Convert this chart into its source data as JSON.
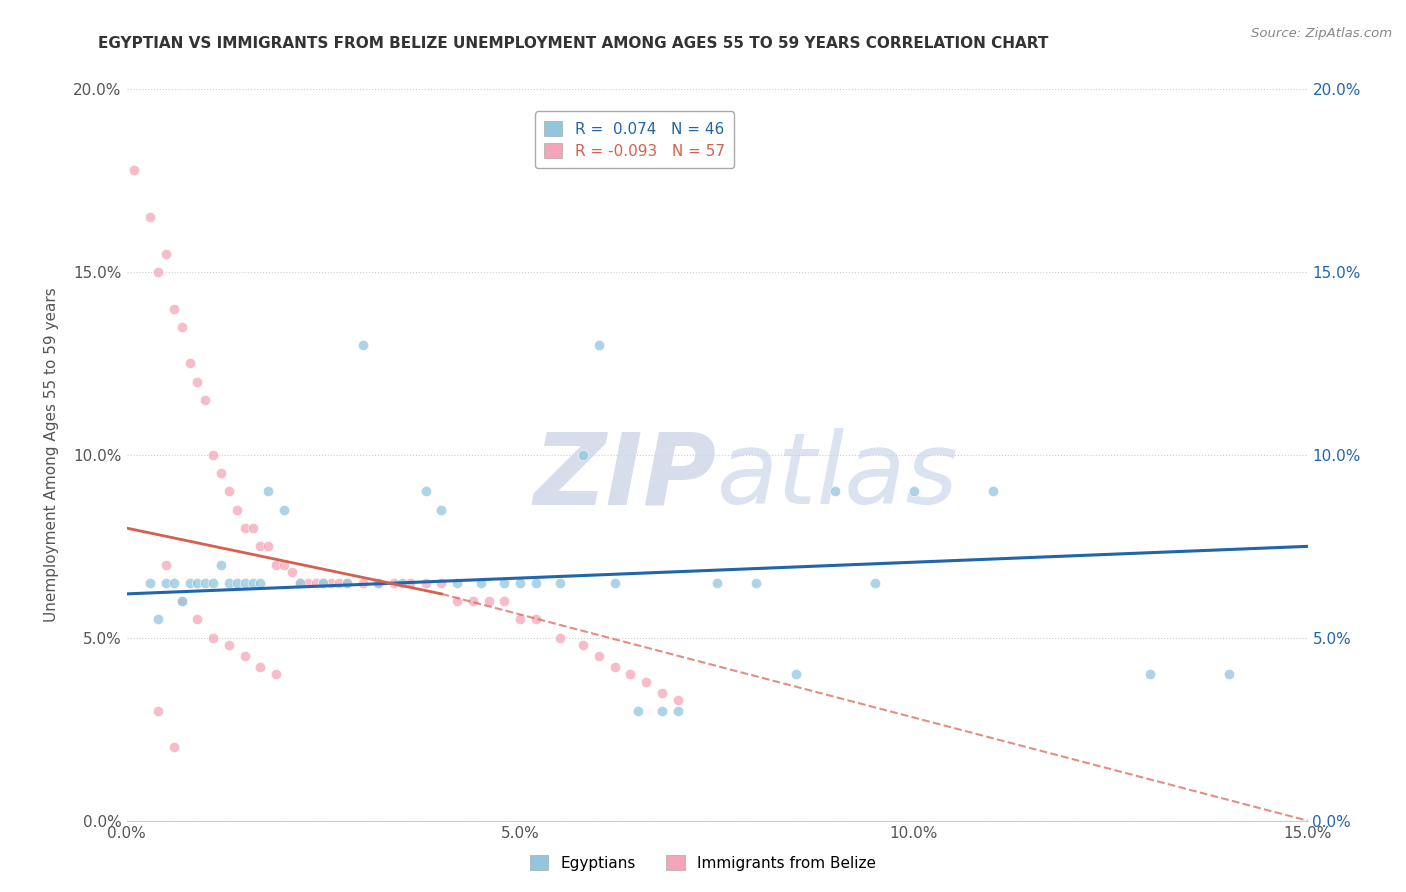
{
  "title": "EGYPTIAN VS IMMIGRANTS FROM BELIZE UNEMPLOYMENT AMONG AGES 55 TO 59 YEARS CORRELATION CHART",
  "source": "Source: ZipAtlas.com",
  "ylabel": "Unemployment Among Ages 55 to 59 years",
  "xlim": [
    0.0,
    0.15
  ],
  "ylim": [
    0.0,
    0.2
  ],
  "xticks": [
    0.0,
    0.05,
    0.1,
    0.15
  ],
  "yticks": [
    0.0,
    0.05,
    0.1,
    0.15,
    0.2
  ],
  "xtick_labels": [
    "0.0%",
    "5.0%",
    "10.0%",
    "15.0%"
  ],
  "ytick_labels_left": [
    "0.0%",
    "5.0%",
    "10.0%",
    "15.0%",
    "20.0%"
  ],
  "ytick_labels_right": [
    "0.0%",
    "5.0%",
    "10.0%",
    "15.0%",
    "20.0%"
  ],
  "color_blue": "#92c5de",
  "color_pink": "#f4a6b8",
  "color_blue_line": "#2166ac",
  "color_pink_line": "#d6604d",
  "R_blue": 0.074,
  "N_blue": 46,
  "R_pink": -0.093,
  "N_pink": 57,
  "watermark_zip": "ZIP",
  "watermark_atlas": "atlas",
  "legend_label_blue": "Egyptians",
  "legend_label_pink": "Immigrants from Belize",
  "blue_scatter": [
    [
      0.003,
      0.065
    ],
    [
      0.004,
      0.055
    ],
    [
      0.005,
      0.065
    ],
    [
      0.006,
      0.065
    ],
    [
      0.007,
      0.06
    ],
    [
      0.008,
      0.065
    ],
    [
      0.009,
      0.065
    ],
    [
      0.01,
      0.065
    ],
    [
      0.011,
      0.065
    ],
    [
      0.012,
      0.07
    ],
    [
      0.013,
      0.065
    ],
    [
      0.014,
      0.065
    ],
    [
      0.015,
      0.065
    ],
    [
      0.016,
      0.065
    ],
    [
      0.017,
      0.065
    ],
    [
      0.018,
      0.09
    ],
    [
      0.02,
      0.085
    ],
    [
      0.022,
      0.065
    ],
    [
      0.025,
      0.065
    ],
    [
      0.028,
      0.065
    ],
    [
      0.03,
      0.13
    ],
    [
      0.032,
      0.065
    ],
    [
      0.035,
      0.065
    ],
    [
      0.038,
      0.09
    ],
    [
      0.04,
      0.085
    ],
    [
      0.042,
      0.065
    ],
    [
      0.045,
      0.065
    ],
    [
      0.048,
      0.065
    ],
    [
      0.05,
      0.065
    ],
    [
      0.052,
      0.065
    ],
    [
      0.055,
      0.065
    ],
    [
      0.058,
      0.1
    ],
    [
      0.06,
      0.13
    ],
    [
      0.062,
      0.065
    ],
    [
      0.065,
      0.03
    ],
    [
      0.068,
      0.03
    ],
    [
      0.07,
      0.03
    ],
    [
      0.075,
      0.065
    ],
    [
      0.08,
      0.065
    ],
    [
      0.085,
      0.04
    ],
    [
      0.09,
      0.09
    ],
    [
      0.095,
      0.065
    ],
    [
      0.1,
      0.09
    ],
    [
      0.11,
      0.09
    ],
    [
      0.13,
      0.04
    ],
    [
      0.14,
      0.04
    ]
  ],
  "pink_scatter": [
    [
      0.001,
      0.178
    ],
    [
      0.003,
      0.165
    ],
    [
      0.004,
      0.15
    ],
    [
      0.005,
      0.155
    ],
    [
      0.006,
      0.14
    ],
    [
      0.007,
      0.135
    ],
    [
      0.008,
      0.125
    ],
    [
      0.009,
      0.12
    ],
    [
      0.01,
      0.115
    ],
    [
      0.011,
      0.1
    ],
    [
      0.012,
      0.095
    ],
    [
      0.013,
      0.09
    ],
    [
      0.014,
      0.085
    ],
    [
      0.015,
      0.08
    ],
    [
      0.016,
      0.08
    ],
    [
      0.017,
      0.075
    ],
    [
      0.018,
      0.075
    ],
    [
      0.019,
      0.07
    ],
    [
      0.02,
      0.07
    ],
    [
      0.021,
      0.068
    ],
    [
      0.022,
      0.065
    ],
    [
      0.023,
      0.065
    ],
    [
      0.024,
      0.065
    ],
    [
      0.025,
      0.065
    ],
    [
      0.026,
      0.065
    ],
    [
      0.027,
      0.065
    ],
    [
      0.028,
      0.065
    ],
    [
      0.03,
      0.065
    ],
    [
      0.032,
      0.065
    ],
    [
      0.034,
      0.065
    ],
    [
      0.036,
      0.065
    ],
    [
      0.038,
      0.065
    ],
    [
      0.04,
      0.065
    ],
    [
      0.042,
      0.06
    ],
    [
      0.044,
      0.06
    ],
    [
      0.046,
      0.06
    ],
    [
      0.048,
      0.06
    ],
    [
      0.05,
      0.055
    ],
    [
      0.052,
      0.055
    ],
    [
      0.055,
      0.05
    ],
    [
      0.058,
      0.048
    ],
    [
      0.06,
      0.045
    ],
    [
      0.062,
      0.042
    ],
    [
      0.064,
      0.04
    ],
    [
      0.066,
      0.038
    ],
    [
      0.068,
      0.035
    ],
    [
      0.07,
      0.033
    ],
    [
      0.005,
      0.07
    ],
    [
      0.007,
      0.06
    ],
    [
      0.009,
      0.055
    ],
    [
      0.011,
      0.05
    ],
    [
      0.013,
      0.048
    ],
    [
      0.015,
      0.045
    ],
    [
      0.017,
      0.042
    ],
    [
      0.019,
      0.04
    ],
    [
      0.004,
      0.03
    ],
    [
      0.006,
      0.02
    ]
  ]
}
